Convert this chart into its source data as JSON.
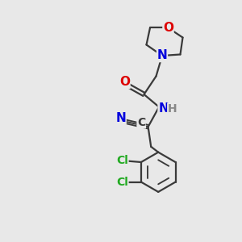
{
  "bg_color": "#e8e8e8",
  "bond_color": "#3a3a3a",
  "bond_width": 1.6,
  "atom_colors": {
    "O": "#dd0000",
    "N": "#0000dd",
    "Cl": "#22aa22",
    "C": "#3a3a3a",
    "H": "#888888"
  },
  "fs_large": 11,
  "fs_med": 10,
  "fs_small": 9
}
